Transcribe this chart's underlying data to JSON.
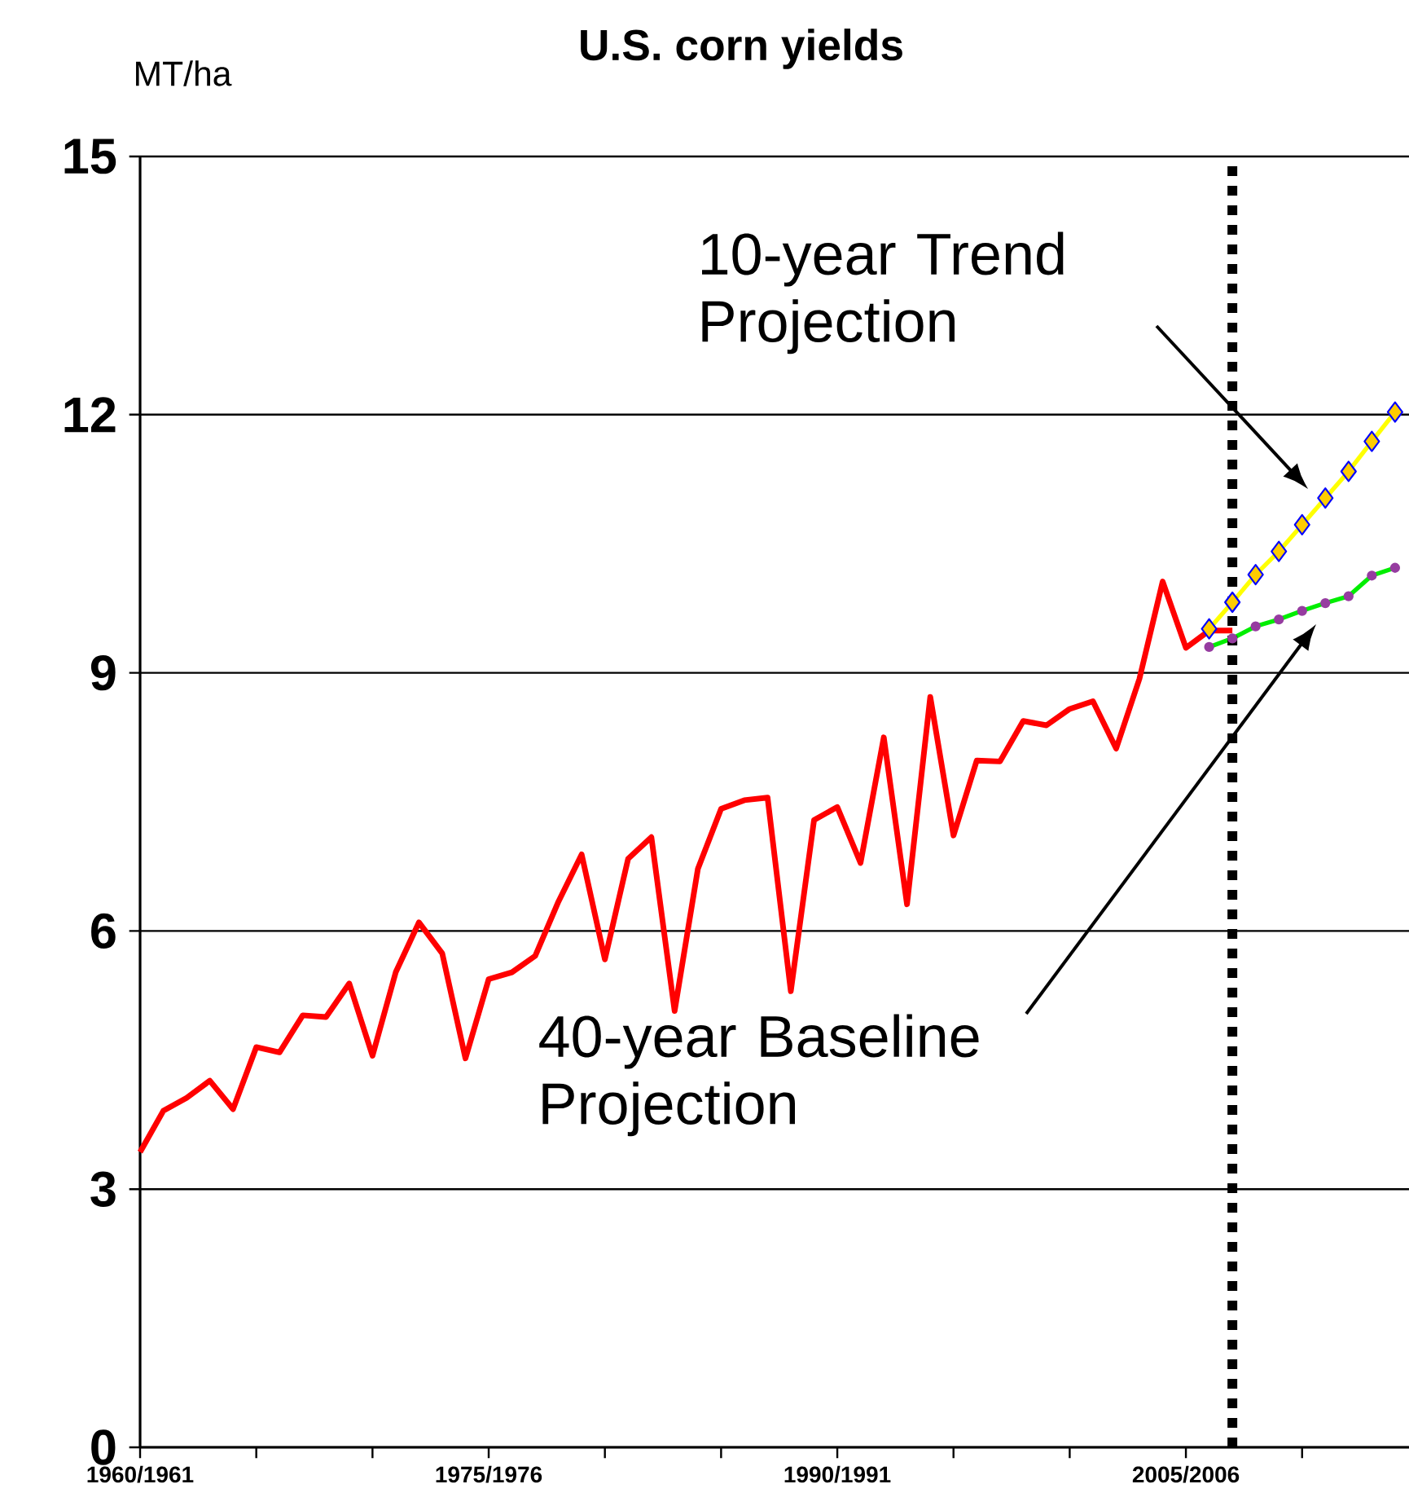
{
  "chart_data": {
    "type": "line",
    "title": "U.S. corn yields",
    "ylabel": "MT/ha",
    "categories": [
      "1960/1961",
      null,
      null,
      null,
      null,
      null,
      null,
      null,
      null,
      null,
      null,
      null,
      null,
      null,
      null,
      "1975/1976",
      null,
      null,
      null,
      null,
      null,
      null,
      null,
      null,
      null,
      null,
      null,
      null,
      null,
      null,
      "1990/1991",
      null,
      null,
      null,
      null,
      null,
      null,
      null,
      null,
      null,
      null,
      null,
      null,
      null,
      null,
      "2005/2006",
      null,
      null,
      null,
      null,
      null,
      null,
      null,
      null,
      null
    ],
    "ylim": [
      0,
      15
    ],
    "yticks": [
      0,
      3,
      6,
      9,
      12,
      15
    ],
    "grid": "y",
    "series": [
      {
        "color": "#ff0000",
        "marker": "none",
        "values": [
          3.43,
          3.91,
          4.06,
          4.26,
          3.93,
          4.65,
          4.59,
          5.02,
          5.0,
          5.39,
          4.55,
          5.52,
          6.1,
          5.74,
          4.52,
          5.44,
          5.52,
          5.71,
          6.34,
          6.89,
          5.67,
          6.84,
          7.09,
          5.07,
          6.72,
          7.42,
          7.52,
          7.55,
          5.3,
          7.29,
          7.44,
          6.79,
          8.25,
          6.31,
          8.72,
          7.11,
          7.98,
          7.97,
          8.44,
          8.39,
          8.58,
          8.67,
          8.12,
          8.93,
          10.06,
          9.29,
          9.49,
          9.49,
          null,
          null,
          null,
          null,
          null,
          null,
          null
        ]
      },
      {
        "color": "#ffff00",
        "marker": "diamond",
        "values": [
          null,
          null,
          null,
          null,
          null,
          null,
          null,
          null,
          null,
          null,
          null,
          null,
          null,
          null,
          null,
          null,
          null,
          null,
          null,
          null,
          null,
          null,
          null,
          null,
          null,
          null,
          null,
          null,
          null,
          null,
          null,
          null,
          null,
          null,
          null,
          null,
          null,
          null,
          null,
          null,
          null,
          null,
          null,
          null,
          null,
          null,
          9.51,
          9.82,
          10.14,
          10.41,
          10.72,
          11.03,
          11.34,
          11.69,
          12.03
        ]
      },
      {
        "color": "#00ee00",
        "marker": "circle",
        "values": [
          null,
          null,
          null,
          null,
          null,
          null,
          null,
          null,
          null,
          null,
          null,
          null,
          null,
          null,
          null,
          null,
          null,
          null,
          null,
          null,
          null,
          null,
          null,
          null,
          null,
          null,
          null,
          null,
          null,
          null,
          null,
          null,
          null,
          null,
          null,
          null,
          null,
          null,
          null,
          null,
          null,
          null,
          null,
          null,
          null,
          null,
          9.3,
          9.4,
          9.54,
          9.62,
          9.72,
          9.81,
          9.89,
          10.13,
          10.22
        ]
      }
    ],
    "annotations": [
      "10-year Trend Projection",
      "40-year Baseline Projection"
    ]
  }
}
